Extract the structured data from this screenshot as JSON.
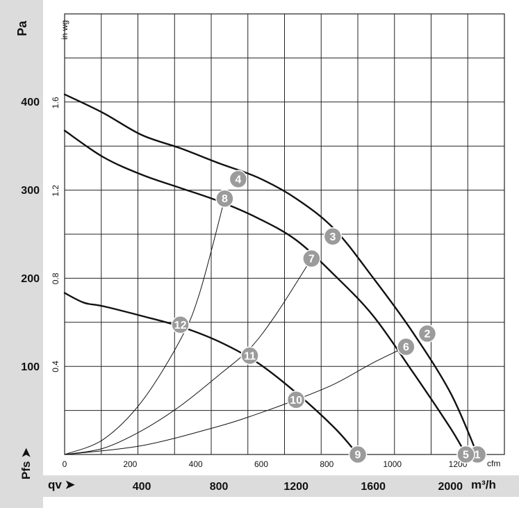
{
  "chart_data": {
    "type": "line",
    "axes": {
      "flow_m3h": {
        "label": "m³/h",
        "range": [
          0,
          2280
        ],
        "ticks": [
          400,
          800,
          1200,
          1600,
          2000
        ]
      },
      "flow_cfm": {
        "label": "cfm",
        "range": [
          0,
          1342
        ],
        "ticks": [
          0,
          200,
          400,
          600,
          800,
          1000,
          1200
        ]
      },
      "pressure_pa": {
        "label": "Pa",
        "range": [
          0,
          400
        ],
        "ticks": [
          100,
          200,
          300,
          400
        ]
      },
      "pressure_inwg": {
        "label": "in wg",
        "range": [
          0,
          1.6
        ],
        "ticks": [
          "0.4",
          "0.8",
          "1.2",
          "1.6"
        ]
      }
    },
    "x_axis_label": "qv",
    "y_axis_label": "Pfs",
    "grid": true,
    "series": [
      {
        "id": "A",
        "labels_on_curve": [
          "4",
          "3",
          "2",
          "1"
        ],
        "x": [
          0,
          200,
          400,
          600,
          800,
          1000,
          1200,
          1400,
          1600,
          1800,
          2000,
          2140
        ],
        "y": [
          408,
          387,
          362,
          347,
          330,
          314,
          290,
          255,
          200,
          140,
          70,
          0
        ]
      },
      {
        "id": "B",
        "labels_on_curve": [
          "8",
          "7",
          "6",
          "5"
        ],
        "x": [
          0,
          200,
          400,
          600,
          800,
          1000,
          1200,
          1400,
          1600,
          1800,
          2000,
          2080
        ],
        "y": [
          367,
          337,
          317,
          302,
          287,
          268,
          243,
          203,
          157,
          95,
          30,
          0
        ]
      },
      {
        "id": "C",
        "labels_on_curve": [
          "12",
          "11",
          "10",
          "9"
        ],
        "x": [
          0,
          100,
          200,
          400,
          600,
          800,
          1000,
          1200,
          1400,
          1520
        ],
        "y": [
          183,
          172,
          168,
          157,
          145,
          128,
          104,
          70,
          30,
          0
        ]
      },
      {
        "id": "system-12",
        "x": [
          0,
          200,
          400,
          600,
          700,
          830
        ],
        "y": [
          0,
          17,
          60,
          130,
          183,
          290
        ]
      },
      {
        "id": "system-11",
        "x": [
          0,
          200,
          400,
          600,
          800,
          960,
          1100,
          1280
        ],
        "y": [
          0,
          7,
          27,
          55,
          90,
          120,
          160,
          222
        ]
      },
      {
        "id": "system-10",
        "x": [
          0,
          400,
          800,
          1000,
          1200,
          1400,
          1600,
          1770
        ],
        "y": [
          0,
          10,
          32,
          46,
          62,
          80,
          104,
          122
        ]
      }
    ],
    "markers": [
      {
        "label": "1",
        "x": 2140,
        "y": 0
      },
      {
        "label": "2",
        "x": 1880,
        "y": 137
      },
      {
        "label": "3",
        "x": 1390,
        "y": 247
      },
      {
        "label": "4",
        "x": 900,
        "y": 312
      },
      {
        "label": "5",
        "x": 2080,
        "y": 0
      },
      {
        "label": "6",
        "x": 1770,
        "y": 122
      },
      {
        "label": "7",
        "x": 1280,
        "y": 222
      },
      {
        "label": "8",
        "x": 830,
        "y": 290
      },
      {
        "label": "9",
        "x": 1520,
        "y": 0
      },
      {
        "label": "10",
        "x": 1200,
        "y": 62
      },
      {
        "label": "11",
        "x": 960,
        "y": 112
      },
      {
        "label": "12",
        "x": 600,
        "y": 147
      }
    ],
    "colors": {
      "curve": "#111111",
      "marker": "#9b9b9b",
      "marker_text": "#ffffff",
      "grid": "#222222",
      "band": "#dcdcdc"
    }
  }
}
